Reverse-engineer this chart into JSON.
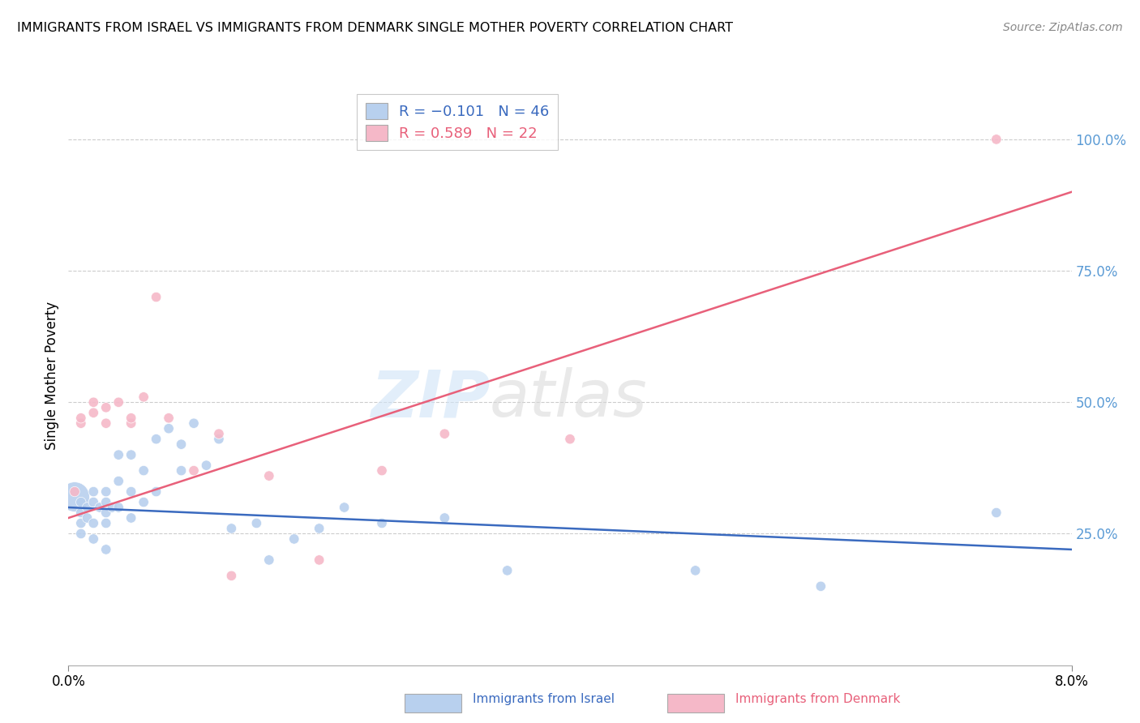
{
  "title": "IMMIGRANTS FROM ISRAEL VS IMMIGRANTS FROM DENMARK SINGLE MOTHER POVERTY CORRELATION CHART",
  "source": "Source: ZipAtlas.com",
  "ylabel": "Single Mother Poverty",
  "right_yticks": [
    "100.0%",
    "75.0%",
    "50.0%",
    "25.0%"
  ],
  "right_ytick_vals": [
    1.0,
    0.75,
    0.5,
    0.25
  ],
  "xlim": [
    0.0,
    0.08
  ],
  "ylim": [
    0.0,
    1.1
  ],
  "watermark_left": "ZIP",
  "watermark_right": "atlas",
  "israel_color": "#b8d0ee",
  "denmark_color": "#f5b8c8",
  "israel_line_color": "#3a6abf",
  "denmark_line_color": "#e8607a",
  "right_axis_color": "#5b9bd5",
  "grid_color": "#cccccc",
  "israel_x": [
    0.0005,
    0.001,
    0.001,
    0.001,
    0.001,
    0.0015,
    0.0015,
    0.002,
    0.002,
    0.002,
    0.002,
    0.0025,
    0.003,
    0.003,
    0.003,
    0.003,
    0.003,
    0.0035,
    0.004,
    0.004,
    0.004,
    0.005,
    0.005,
    0.005,
    0.006,
    0.006,
    0.007,
    0.007,
    0.008,
    0.009,
    0.009,
    0.01,
    0.011,
    0.012,
    0.013,
    0.015,
    0.016,
    0.018,
    0.02,
    0.022,
    0.025,
    0.03,
    0.035,
    0.05,
    0.06,
    0.074
  ],
  "israel_y": [
    0.32,
    0.31,
    0.29,
    0.27,
    0.25,
    0.3,
    0.28,
    0.33,
    0.31,
    0.27,
    0.24,
    0.3,
    0.33,
    0.31,
    0.29,
    0.27,
    0.22,
    0.3,
    0.4,
    0.35,
    0.3,
    0.4,
    0.33,
    0.28,
    0.37,
    0.31,
    0.43,
    0.33,
    0.45,
    0.42,
    0.37,
    0.46,
    0.38,
    0.43,
    0.26,
    0.27,
    0.2,
    0.24,
    0.26,
    0.3,
    0.27,
    0.28,
    0.18,
    0.18,
    0.15,
    0.29
  ],
  "israel_sizes": [
    700,
    80,
    80,
    80,
    80,
    80,
    80,
    80,
    80,
    80,
    80,
    80,
    80,
    80,
    80,
    80,
    80,
    80,
    80,
    80,
    80,
    80,
    80,
    80,
    80,
    80,
    80,
    80,
    80,
    80,
    80,
    80,
    80,
    80,
    80,
    80,
    80,
    80,
    80,
    80,
    80,
    80,
    80,
    80,
    80,
    80
  ],
  "denmark_x": [
    0.0005,
    0.001,
    0.001,
    0.002,
    0.002,
    0.003,
    0.003,
    0.004,
    0.005,
    0.005,
    0.006,
    0.007,
    0.008,
    0.01,
    0.012,
    0.013,
    0.016,
    0.02,
    0.025,
    0.03,
    0.04,
    0.074
  ],
  "denmark_y": [
    0.33,
    0.46,
    0.47,
    0.48,
    0.5,
    0.46,
    0.49,
    0.5,
    0.46,
    0.47,
    0.51,
    0.7,
    0.47,
    0.37,
    0.44,
    0.17,
    0.36,
    0.2,
    0.37,
    0.44,
    0.43,
    1.0
  ],
  "denmark_sizes": [
    80,
    80,
    80,
    80,
    80,
    80,
    80,
    80,
    80,
    80,
    80,
    80,
    80,
    80,
    80,
    80,
    80,
    80,
    80,
    80,
    80,
    80
  ],
  "israel_line_x0": 0.0,
  "israel_line_y0": 0.3,
  "israel_line_x1": 0.08,
  "israel_line_y1": 0.22,
  "denmark_line_x0": 0.0,
  "denmark_line_y0": 0.28,
  "denmark_line_x1": 0.08,
  "denmark_line_y1": 0.9
}
